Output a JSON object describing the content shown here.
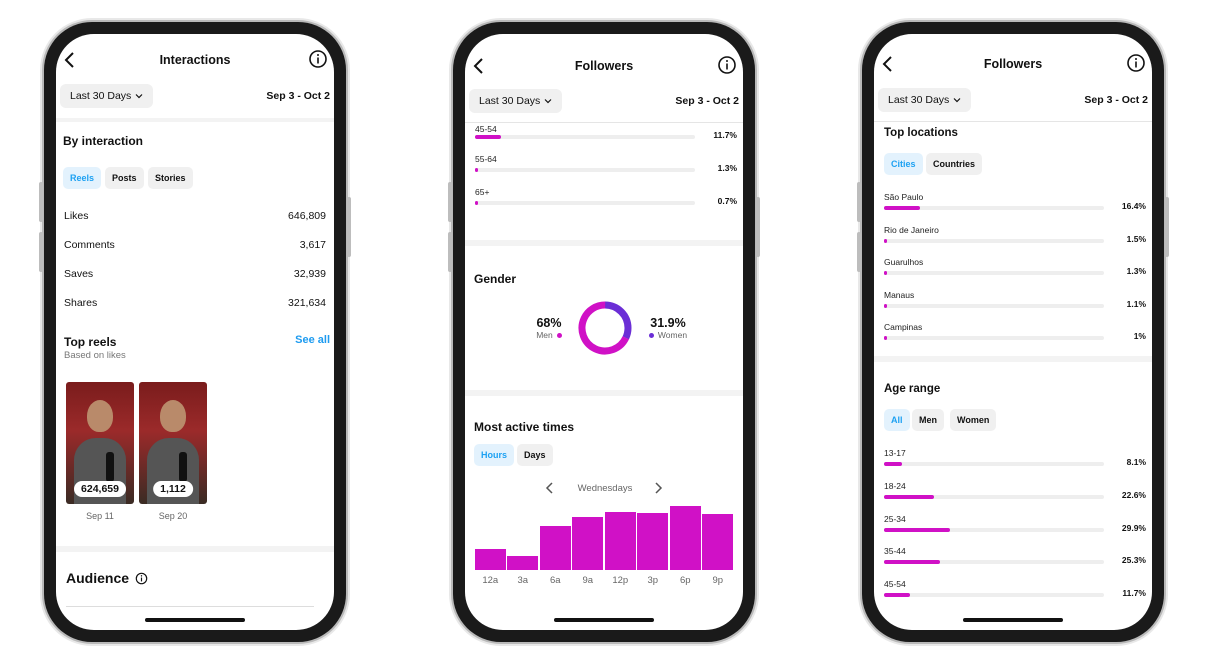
{
  "colors": {
    "accent_magenta": "#d011c6",
    "accent_purple": "#6b2ed6",
    "link_blue": "#1d9bf0",
    "chip_active_bg": "#e3f2fd"
  },
  "phone1": {
    "title": "Interactions",
    "range": "Last 30 Days",
    "dates": "Sep 3 - Oct 2",
    "by_interaction": "By interaction",
    "tabs": [
      "Reels",
      "Posts",
      "Stories"
    ],
    "metrics": [
      {
        "label": "Likes",
        "value": "646,809"
      },
      {
        "label": "Comments",
        "value": "3,617"
      },
      {
        "label": "Saves",
        "value": "32,939"
      },
      {
        "label": "Shares",
        "value": "321,634"
      }
    ],
    "top_reels": "Top reels",
    "based_on": "Based on likes",
    "see_all": "See all",
    "reels": [
      {
        "count": "624,659",
        "date": "Sep 11"
      },
      {
        "count": "1,112",
        "date": "Sep 20"
      }
    ],
    "audience": "Audience"
  },
  "phone2": {
    "title": "Followers",
    "range": "Last 30 Days",
    "dates": "Sep 3 - Oct 2",
    "age_rows": [
      {
        "label": "45-54",
        "pct": "11.7%",
        "value": 11.7
      },
      {
        "label": "55-64",
        "pct": "1.3%",
        "value": 1.3
      },
      {
        "label": "65+",
        "pct": "0.7%",
        "value": 0.7
      }
    ],
    "gender_title": "Gender",
    "men_pct": "68%",
    "men_label": "Men",
    "women_pct": "31.9%",
    "women_label": "Women",
    "active_title": "Most active times",
    "tabs": [
      "Hours",
      "Days"
    ],
    "day": "Wednesdays",
    "chart_data": {
      "type": "bar",
      "categories": [
        "12a",
        "3a",
        "6a",
        "9a",
        "12p",
        "3p",
        "6p",
        "9p"
      ],
      "values": [
        19,
        13,
        40,
        48,
        53,
        52,
        58,
        51
      ],
      "ylim": [
        0,
        60
      ]
    }
  },
  "phone3": {
    "title": "Followers",
    "range": "Last 30 Days",
    "dates": "Sep 3 - Oct 2",
    "top_locations": "Top locations",
    "loc_tabs": [
      "Cities",
      "Countries"
    ],
    "cities": [
      {
        "label": "São Paulo",
        "pct": "16.4%",
        "value": 16.4
      },
      {
        "label": "Rio de Janeiro",
        "pct": "1.5%",
        "value": 1.5
      },
      {
        "label": "Guarulhos",
        "pct": "1.3%",
        "value": 1.3
      },
      {
        "label": "Manaus",
        "pct": "1.1%",
        "value": 1.1
      },
      {
        "label": "Campinas",
        "pct": "1%",
        "value": 1
      }
    ],
    "age_range": "Age range",
    "age_tabs": [
      "All",
      "Men",
      "Women"
    ],
    "ages": [
      {
        "label": "13-17",
        "pct": "8.1%",
        "value": 8.1
      },
      {
        "label": "18-24",
        "pct": "22.6%",
        "value": 22.6
      },
      {
        "label": "25-34",
        "pct": "29.9%",
        "value": 29.9
      },
      {
        "label": "35-44",
        "pct": "25.3%",
        "value": 25.3
      },
      {
        "label": "45-54",
        "pct": "11.7%",
        "value": 11.7
      }
    ]
  }
}
